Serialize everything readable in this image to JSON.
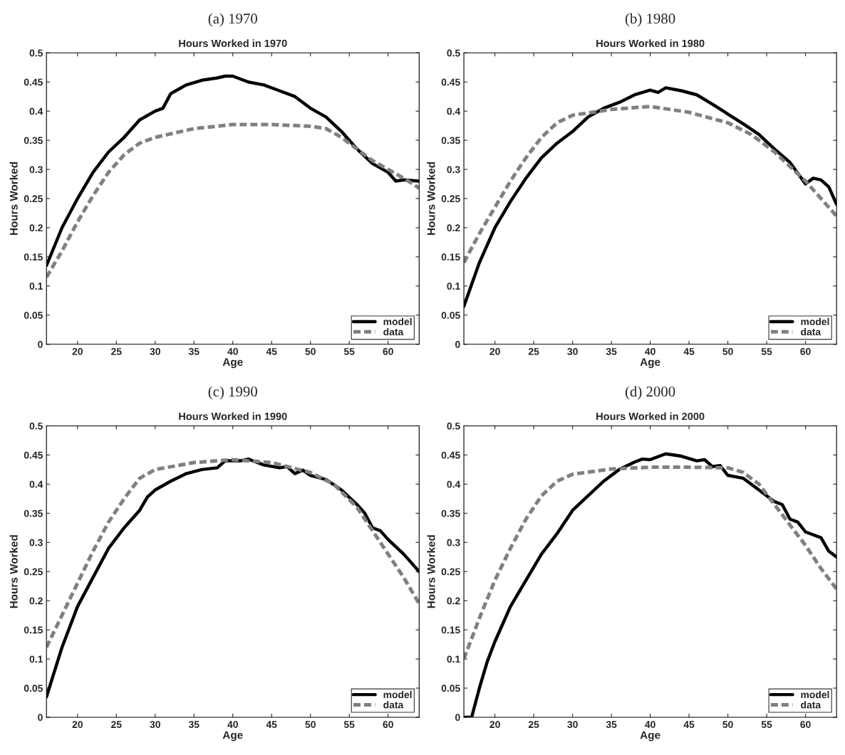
{
  "chart_data": [
    {
      "type": "line",
      "subtitle": "(a) 1970",
      "title": "Hours Worked in 1970",
      "xlabel": "Age",
      "ylabel": "Hours Worked",
      "xlim": [
        16,
        64
      ],
      "ylim": [
        0,
        0.5
      ],
      "xticks": [
        20,
        25,
        30,
        35,
        40,
        45,
        50,
        55,
        60
      ],
      "yticks": [
        0,
        0.05,
        0.1,
        0.15,
        0.2,
        0.25,
        0.3,
        0.35,
        0.4,
        0.45,
        0.5
      ],
      "grid": false,
      "legend": "bottom right",
      "series": [
        {
          "name": "model",
          "color": "#000000",
          "line_style": "solid",
          "x": [
            16,
            18,
            20,
            22,
            24,
            26,
            28,
            30,
            31,
            32,
            34,
            36,
            38,
            39,
            40,
            42,
            44,
            46,
            48,
            50,
            52,
            54,
            56,
            58,
            60,
            61,
            62,
            64
          ],
          "values": [
            0.135,
            0.2,
            0.25,
            0.295,
            0.33,
            0.355,
            0.385,
            0.4,
            0.405,
            0.43,
            0.445,
            0.453,
            0.457,
            0.46,
            0.46,
            0.45,
            0.445,
            0.435,
            0.425,
            0.405,
            0.39,
            0.365,
            0.335,
            0.31,
            0.295,
            0.28,
            0.282,
            0.28
          ]
        },
        {
          "name": "data",
          "color": "#808080",
          "line_style": "dashed",
          "x": [
            16,
            18,
            20,
            22,
            24,
            26,
            28,
            30,
            35,
            40,
            45,
            50,
            52,
            54,
            56,
            58,
            60,
            62,
            64
          ],
          "values": [
            0.115,
            0.16,
            0.21,
            0.255,
            0.295,
            0.325,
            0.345,
            0.355,
            0.37,
            0.377,
            0.377,
            0.374,
            0.37,
            0.355,
            0.335,
            0.315,
            0.3,
            0.285,
            0.268
          ]
        }
      ]
    },
    {
      "type": "line",
      "subtitle": "(b) 1980",
      "title": "Hours Worked in 1980",
      "xlabel": "Age",
      "ylabel": "Hours Worked",
      "xlim": [
        16,
        64
      ],
      "ylim": [
        0,
        0.5
      ],
      "xticks": [
        20,
        25,
        30,
        35,
        40,
        45,
        50,
        55,
        60
      ],
      "yticks": [
        0,
        0.05,
        0.1,
        0.15,
        0.2,
        0.25,
        0.3,
        0.35,
        0.4,
        0.45,
        0.5
      ],
      "grid": false,
      "legend": "bottom right",
      "series": [
        {
          "name": "model",
          "color": "#000000",
          "line_style": "solid",
          "x": [
            16,
            18,
            20,
            22,
            24,
            26,
            28,
            30,
            32,
            34,
            36,
            38,
            40,
            41,
            42,
            44,
            46,
            48,
            50,
            52,
            54,
            56,
            58,
            60,
            61,
            62,
            63,
            64
          ],
          "values": [
            0.065,
            0.14,
            0.2,
            0.245,
            0.285,
            0.32,
            0.345,
            0.365,
            0.39,
            0.405,
            0.415,
            0.428,
            0.436,
            0.432,
            0.44,
            0.435,
            0.428,
            0.412,
            0.395,
            0.378,
            0.36,
            0.335,
            0.312,
            0.275,
            0.285,
            0.282,
            0.27,
            0.24
          ]
        },
        {
          "name": "data",
          "color": "#808080",
          "line_style": "dashed",
          "x": [
            16,
            18,
            20,
            22,
            24,
            26,
            28,
            30,
            35,
            40,
            45,
            50,
            53,
            56,
            58,
            60,
            62,
            64
          ],
          "values": [
            0.14,
            0.19,
            0.235,
            0.28,
            0.32,
            0.355,
            0.38,
            0.393,
            0.403,
            0.408,
            0.398,
            0.38,
            0.36,
            0.33,
            0.305,
            0.28,
            0.25,
            0.22
          ]
        }
      ]
    },
    {
      "type": "line",
      "subtitle": "(c) 1990",
      "title": "Hours Worked in 1990",
      "xlabel": "Age",
      "ylabel": "Hours Worked",
      "xlim": [
        16,
        64
      ],
      "ylim": [
        0,
        0.5
      ],
      "xticks": [
        20,
        25,
        30,
        35,
        40,
        45,
        50,
        55,
        60
      ],
      "yticks": [
        0,
        0.05,
        0.1,
        0.15,
        0.2,
        0.25,
        0.3,
        0.35,
        0.4,
        0.45,
        0.5
      ],
      "grid": false,
      "legend": "bottom right",
      "series": [
        {
          "name": "model",
          "color": "#000000",
          "line_style": "solid",
          "x": [
            16,
            18,
            20,
            22,
            24,
            26,
            28,
            29,
            30,
            32,
            34,
            36,
            38,
            39,
            41,
            42,
            44,
            46,
            47,
            48,
            49,
            50,
            52,
            54,
            56,
            57,
            58,
            59,
            60,
            62,
            64
          ],
          "values": [
            0.035,
            0.12,
            0.19,
            0.24,
            0.29,
            0.325,
            0.355,
            0.378,
            0.39,
            0.405,
            0.418,
            0.425,
            0.428,
            0.44,
            0.44,
            0.443,
            0.433,
            0.428,
            0.43,
            0.418,
            0.424,
            0.415,
            0.408,
            0.39,
            0.365,
            0.35,
            0.325,
            0.32,
            0.305,
            0.28,
            0.25
          ]
        },
        {
          "name": "data",
          "color": "#808080",
          "line_style": "dashed",
          "x": [
            16,
            18,
            20,
            22,
            24,
            26,
            28,
            30,
            35,
            40,
            45,
            50,
            53,
            56,
            58,
            60,
            62,
            64
          ],
          "values": [
            0.12,
            0.175,
            0.23,
            0.285,
            0.335,
            0.375,
            0.41,
            0.425,
            0.437,
            0.442,
            0.437,
            0.42,
            0.4,
            0.36,
            0.32,
            0.28,
            0.24,
            0.195
          ]
        }
      ]
    },
    {
      "type": "line",
      "subtitle": "(d) 2000",
      "title": "Hours Worked in 2000",
      "xlabel": "Age",
      "ylabel": "Hours Worked",
      "xlim": [
        16,
        64
      ],
      "ylim": [
        0,
        0.5
      ],
      "xticks": [
        20,
        25,
        30,
        35,
        40,
        45,
        50,
        55,
        60
      ],
      "yticks": [
        0,
        0.05,
        0.1,
        0.15,
        0.2,
        0.25,
        0.3,
        0.35,
        0.4,
        0.45,
        0.5
      ],
      "grid": false,
      "legend": "bottom right",
      "series": [
        {
          "name": "model",
          "color": "#000000",
          "line_style": "solid",
          "x": [
            16,
            17,
            18,
            19,
            20,
            22,
            24,
            26,
            28,
            30,
            32,
            34,
            36,
            38,
            39,
            40,
            42,
            44,
            46,
            47,
            48,
            49,
            50,
            52,
            54,
            56,
            57,
            58,
            59,
            60,
            62,
            63,
            64
          ],
          "values": [
            0.0,
            0.0,
            0.05,
            0.095,
            0.13,
            0.19,
            0.235,
            0.28,
            0.315,
            0.355,
            0.38,
            0.405,
            0.425,
            0.438,
            0.443,
            0.442,
            0.452,
            0.448,
            0.44,
            0.442,
            0.43,
            0.432,
            0.415,
            0.41,
            0.39,
            0.37,
            0.365,
            0.34,
            0.335,
            0.318,
            0.308,
            0.285,
            0.275
          ]
        },
        {
          "name": "data",
          "color": "#808080",
          "line_style": "dashed",
          "x": [
            16,
            18,
            20,
            22,
            24,
            26,
            28,
            30,
            35,
            40,
            45,
            50,
            52,
            54,
            56,
            58,
            60,
            62,
            64
          ],
          "values": [
            0.1,
            0.17,
            0.235,
            0.29,
            0.34,
            0.38,
            0.405,
            0.417,
            0.426,
            0.429,
            0.429,
            0.428,
            0.42,
            0.4,
            0.365,
            0.33,
            0.295,
            0.255,
            0.22
          ]
        }
      ]
    }
  ]
}
